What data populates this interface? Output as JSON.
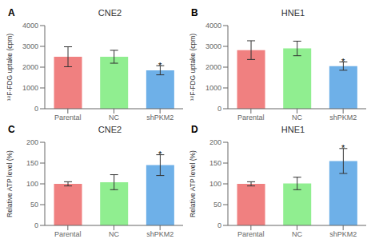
{
  "chart_data": [
    {
      "type": "bar",
      "title": "CNE2",
      "ylabel": "¹⁸F-FDG uptake (cpm)",
      "categories": [
        "Parental",
        "NC",
        "shPKM2"
      ],
      "values": [
        2500,
        2500,
        1850
      ],
      "errors": [
        480,
        310,
        220
      ],
      "colors": [
        "#F08080",
        "#90EE90",
        "#6EB0E8"
      ],
      "ylim": [
        0,
        4000
      ],
      "yticks": [
        0,
        1000,
        2000,
        3000,
        4000
      ],
      "grid": false,
      "annotations": [
        {
          "text": "A"
        },
        {
          "text": "*",
          "x": "shPKM2"
        }
      ]
    },
    {
      "type": "bar",
      "title": "HNE1",
      "ylabel": "¹⁸F-FDG uptake (cpm)",
      "categories": [
        "Parental",
        "NC",
        "shPKM2"
      ],
      "values": [
        2820,
        2900,
        2050
      ],
      "errors": [
        450,
        350,
        200
      ],
      "colors": [
        "#F08080",
        "#90EE90",
        "#6EB0E8"
      ],
      "ylim": [
        0,
        4000
      ],
      "yticks": [
        0,
        1000,
        2000,
        3000,
        4000
      ],
      "grid": false,
      "annotations": [
        {
          "text": "B"
        },
        {
          "text": "*",
          "x": "shPKM2"
        }
      ]
    },
    {
      "type": "bar",
      "title": "CNE2",
      "ylabel": "Relative ATP level (%)",
      "categories": [
        "Parental",
        "NC",
        "shPKM2"
      ],
      "values": [
        100,
        104,
        145
      ],
      "errors": [
        5,
        18,
        25
      ],
      "colors": [
        "#F08080",
        "#90EE90",
        "#6EB0E8"
      ],
      "ylim": [
        0,
        200
      ],
      "yticks": [
        0,
        50,
        100,
        150,
        200
      ],
      "grid": false,
      "annotations": [
        {
          "text": "C"
        },
        {
          "text": "*",
          "x": "shPKM2"
        }
      ]
    },
    {
      "type": "bar",
      "title": "HNE1",
      "ylabel": "Relative ATP level (%)",
      "categories": [
        "Parental",
        "NC",
        "shPKM2"
      ],
      "values": [
        100,
        101,
        155
      ],
      "errors": [
        5,
        15,
        30
      ],
      "colors": [
        "#F08080",
        "#90EE90",
        "#6EB0E8"
      ],
      "ylim": [
        0,
        200
      ],
      "yticks": [
        0,
        50,
        100,
        150,
        200
      ],
      "grid": false,
      "annotations": [
        {
          "text": "D"
        },
        {
          "text": "*",
          "x": "shPKM2"
        }
      ]
    }
  ]
}
